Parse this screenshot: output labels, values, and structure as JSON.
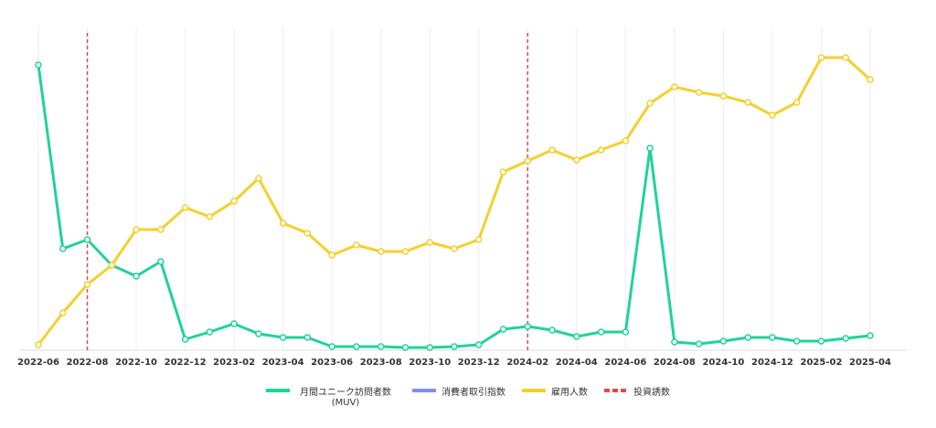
{
  "chart_data": {
    "type": "line",
    "categories": [
      "2022-06",
      null,
      "2022-08",
      null,
      "2022-10",
      null,
      "2022-12",
      null,
      "2023-02",
      null,
      "2023-04",
      null,
      "2023-06",
      null,
      "2023-08",
      null,
      "2023-10",
      null,
      "2023-12",
      null,
      "2024-02",
      null,
      "2024-04",
      null,
      "2024-06",
      null,
      "2024-08",
      null,
      "2024-10",
      null,
      "2024-12",
      null,
      "2025-02",
      null,
      "2025-04"
    ],
    "series": [
      {
        "name": "月間ユニーク訪問者数 (MUV)",
        "color": "#1fd39b",
        "values": [
          312,
          111,
          121,
          93,
          81,
          97,
          12,
          20,
          29,
          18,
          14,
          14,
          4,
          4,
          4,
          3,
          3,
          4,
          6,
          23,
          26,
          22,
          15,
          20,
          20,
          221,
          9,
          7,
          10,
          14,
          14,
          10,
          10,
          13,
          16
        ]
      },
      {
        "name": "消費者取引指数",
        "color": "#7f90f2",
        "values": [
          null,
          null,
          null,
          null,
          null,
          null,
          null,
          null,
          null,
          null,
          null,
          null,
          null,
          null,
          null,
          null,
          null,
          null,
          null,
          null,
          null,
          null,
          null,
          null,
          null,
          null,
          null,
          null,
          null,
          null,
          null,
          null,
          null,
          null,
          null
        ]
      },
      {
        "name": "雇用人数",
        "color": "#f6cf2c",
        "values": [
          6,
          41,
          72,
          93,
          132,
          132,
          156,
          146,
          163,
          188,
          139,
          128,
          104,
          115,
          108,
          108,
          118,
          111,
          121,
          195,
          207,
          219,
          208,
          219,
          229,
          270,
          288,
          282,
          278,
          271,
          257,
          271,
          320,
          320,
          296
        ]
      }
    ],
    "investments": {
      "name": "投資誘数",
      "color": "#e24a4a",
      "at": [
        "2022-08",
        "2024-02"
      ]
    },
    "ylim": [
      0,
      345
    ],
    "grid": true
  }
}
